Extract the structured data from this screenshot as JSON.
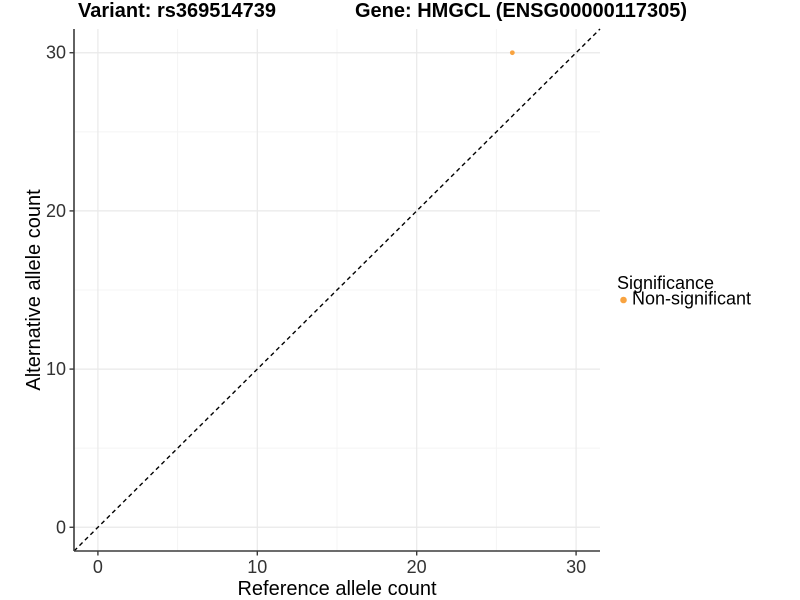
{
  "titles": {
    "variant": "Variant: rs369514739",
    "gene": "Gene: HMGCL (ENSG00000117305)"
  },
  "axes": {
    "x_label": "Reference allele count",
    "y_label": "Alternative allele count"
  },
  "legend": {
    "title": "Significance",
    "items": [
      {
        "label": "Non-significant",
        "color": "#F8A340"
      }
    ]
  },
  "chart_data": {
    "type": "scatter",
    "title": "Variant: rs369514739",
    "subtitle": "Gene: HMGCL (ENSG00000117305)",
    "xlabel": "Reference allele count",
    "ylabel": "Alternative allele count",
    "xlim": [
      -1.5,
      31.5
    ],
    "ylim": [
      -1.5,
      31.5
    ],
    "x_major_ticks": [
      0,
      10,
      20,
      30
    ],
    "y_major_ticks": [
      0,
      10,
      20,
      30
    ],
    "x_minor_ticks": [
      5,
      15,
      25
    ],
    "y_minor_ticks": [
      5,
      15,
      25
    ],
    "grid": "on",
    "legend_position": "right",
    "series": [
      {
        "name": "Non-significant",
        "color": "#F8A340",
        "points": [
          {
            "x": 26,
            "y": 30
          }
        ]
      }
    ],
    "reference_line": {
      "style": "dashed",
      "slope": 1,
      "intercept": 0,
      "color": "#000000",
      "from": [
        -1.5,
        -1.5
      ],
      "to": [
        31.5,
        31.5
      ]
    }
  },
  "colors": {
    "background": "#FFFFFF",
    "grid_major": "#E9E9E9",
    "grid_minor": "#F4F4F4",
    "axis_line": "#3b3b3b",
    "tick_mark": "#3b3b3b",
    "point": "#F8A340",
    "dashed_line": "#000000"
  }
}
